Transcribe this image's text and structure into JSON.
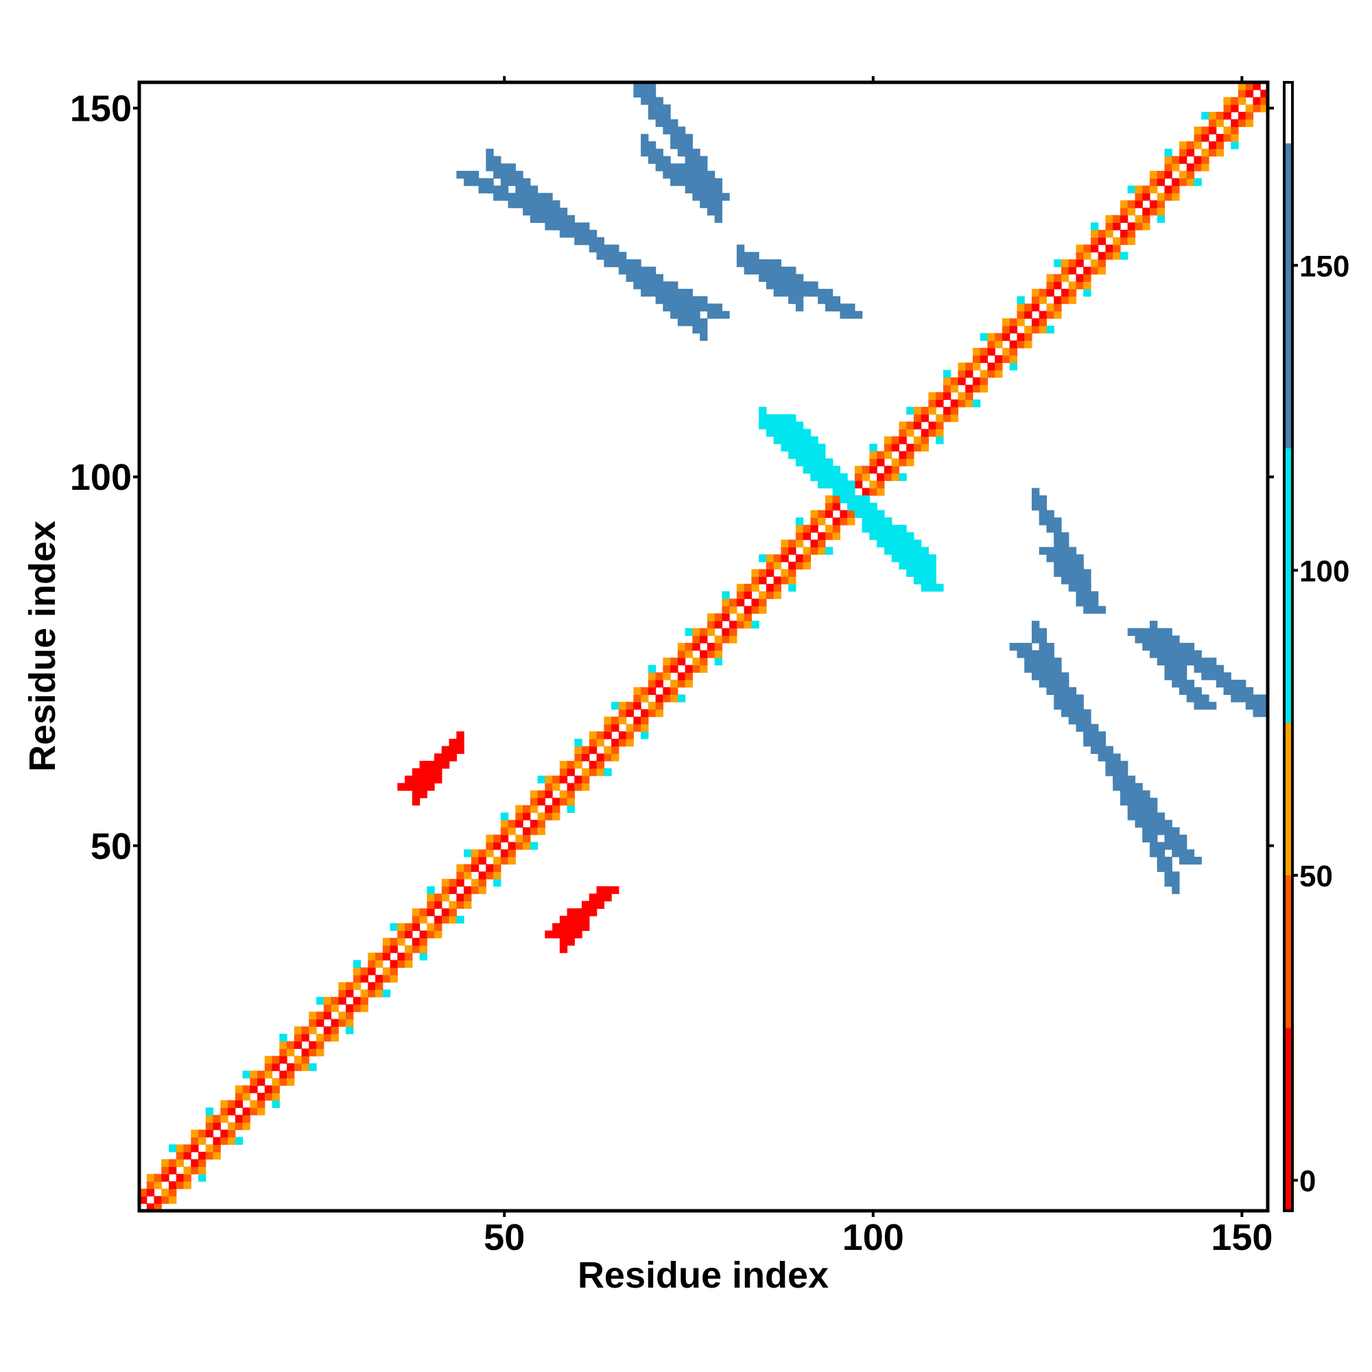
{
  "chart_data": {
    "type": "heatmap",
    "title": "",
    "xlabel": "Residue index",
    "ylabel": "Residue index",
    "xlim": [
      1,
      153
    ],
    "ylim": [
      1,
      153
    ],
    "x_ticks": [
      50,
      100,
      150
    ],
    "y_ticks": [
      50,
      100,
      150
    ],
    "grid": false,
    "colorbar": {
      "range": [
        -5,
        180
      ],
      "ticks": [
        0,
        50,
        100,
        150
      ],
      "bands": [
        {
          "from": -5,
          "to": 25,
          "color": "#ff0000"
        },
        {
          "from": 25,
          "to": 50,
          "color": "#ff5a00"
        },
        {
          "from": 50,
          "to": 75,
          "color": "#ffa000"
        },
        {
          "from": 75,
          "to": 120,
          "color": "#00e5ee"
        },
        {
          "from": 120,
          "to": 170,
          "color": "#4682b4"
        },
        {
          "from": 170,
          "to": 180,
          "color": "#ffffff"
        }
      ]
    },
    "colors": {
      "red": "#ff0000",
      "orange_red": "#ff5a00",
      "orange": "#ffa000",
      "cyan": "#00e5ee",
      "steel_blue": "#4682b4"
    },
    "cells": {
      "diagonal": {
        "from": 1,
        "to": 153,
        "note_offsets": {
          "1": "red",
          "2": "orange_red",
          "3": "orange"
        }
      },
      "helix_regions": [
        [
          1,
          45,
          "orange"
        ],
        [
          45,
          60,
          "red"
        ],
        [
          60,
          80,
          "red"
        ],
        [
          80,
          100,
          "red"
        ],
        [
          100,
          140,
          "red"
        ],
        [
          140,
          153,
          "orange"
        ]
      ],
      "blocks": [
        {
          "x": [
            37,
            43
          ],
          "y": [
            58,
            63
          ],
          "value": 10
        },
        {
          "x": [
            57,
            64
          ],
          "y": [
            38,
            44
          ],
          "value": 10
        },
        {
          "x": [
            45,
            79
          ],
          "y": [
            141,
            122
          ],
          "value": 150
        },
        {
          "x": [
            68,
            79
          ],
          "y": [
            154,
            138
          ],
          "value": 150
        },
        {
          "x": [
            86,
            97
          ],
          "y": [
            129,
            122
          ],
          "value": 150
        },
        {
          "x": [
            120,
            143
          ],
          "y": [
            77,
            48
          ],
          "value": 150
        },
        {
          "x": [
            136,
            145
          ],
          "y": [
            79,
            69
          ],
          "value": 150
        },
        {
          "x": [
            124,
            130
          ],
          "y": [
            90,
            82
          ],
          "value": 150
        },
        {
          "x": [
            92,
            102
          ],
          "y": [
            101,
            93
          ],
          "value": 100
        },
        {
          "x": [
            100,
            108
          ],
          "y": [
            93,
            85
          ],
          "value": 100
        },
        {
          "x": [
            88,
            96
          ],
          "y": [
            108,
            99
          ],
          "value": 100
        }
      ]
    }
  }
}
